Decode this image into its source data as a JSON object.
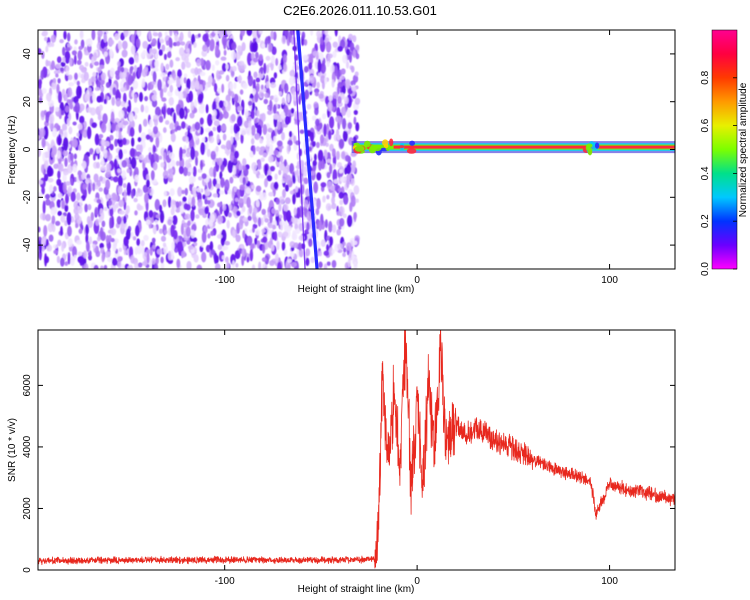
{
  "figure": {
    "title": "C2E6.2026.011.10.53.G01"
  },
  "chart_data": [
    {
      "type": "heatmap",
      "xlabel": "Height of straight line (km)",
      "ylabel": "Frequency (Hz)",
      "xlim": [
        -197,
        134
      ],
      "ylim": [
        -50,
        50
      ],
      "xticks": [
        -100,
        0,
        100
      ],
      "yticks": [
        -40,
        -20,
        0,
        20,
        40
      ],
      "xtick_labels": [
        "-100",
        "0",
        "100"
      ],
      "ytick_labels": [
        "-40",
        "-20",
        "0",
        "20",
        "40"
      ],
      "colorbar": {
        "label": "Normalized spectral amplitude",
        "range": [
          0,
          1
        ],
        "ticks": [
          0.0,
          0.2,
          0.4,
          0.6,
          0.8
        ],
        "tick_labels": [
          "0.0",
          "0.2",
          "0.4",
          "0.6",
          "0.8"
        ],
        "colormap": [
          "#ff00ff",
          "#6a00ff",
          "#0033ff",
          "#00c8ff",
          "#00e08a",
          "#7cff00",
          "#e8f000",
          "#ff9a00",
          "#ff3a00",
          "#ff0040",
          "#ff0090"
        ]
      },
      "features": {
        "noise_region_x": [
          -197,
          -33
        ],
        "signal_line": {
          "x": [
            -33,
            134
          ],
          "frequency": 1,
          "amplitude": 0.9
        },
        "sloped_trace": {
          "x_start": -62,
          "x_end": -52,
          "freq_start": 50,
          "freq_end": -50
        }
      }
    },
    {
      "type": "line",
      "xlabel": "Height of straight line (km)",
      "ylabel": "SNR (10 * v/v)",
      "xlim": [
        -197,
        134
      ],
      "ylim": [
        0,
        7800
      ],
      "xticks": [
        -100,
        0,
        100
      ],
      "yticks": [
        0,
        2000,
        4000,
        6000
      ],
      "xtick_labels": [
        "-100",
        "0",
        "100"
      ],
      "ytick_labels": [
        "0",
        "2000",
        "4000",
        "6000"
      ],
      "color": "#e8281e",
      "series": [
        {
          "x": [
            -197,
            -150,
            -100,
            -50,
            -22,
            -20,
            -18,
            -15,
            -12,
            -9,
            -6,
            -3,
            0,
            3,
            6,
            9,
            12,
            15,
            20,
            25,
            30,
            40,
            50,
            60,
            70,
            80,
            90,
            93,
            100,
            110,
            120,
            134
          ],
          "values": [
            300,
            320,
            330,
            320,
            350,
            1500,
            6500,
            3500,
            5800,
            3200,
            7600,
            2600,
            5500,
            2900,
            6200,
            3600,
            7400,
            4000,
            4800,
            4400,
            4600,
            4300,
            3900,
            3600,
            3300,
            3100,
            2900,
            1800,
            2800,
            2600,
            2500,
            2300
          ]
        }
      ]
    }
  ]
}
